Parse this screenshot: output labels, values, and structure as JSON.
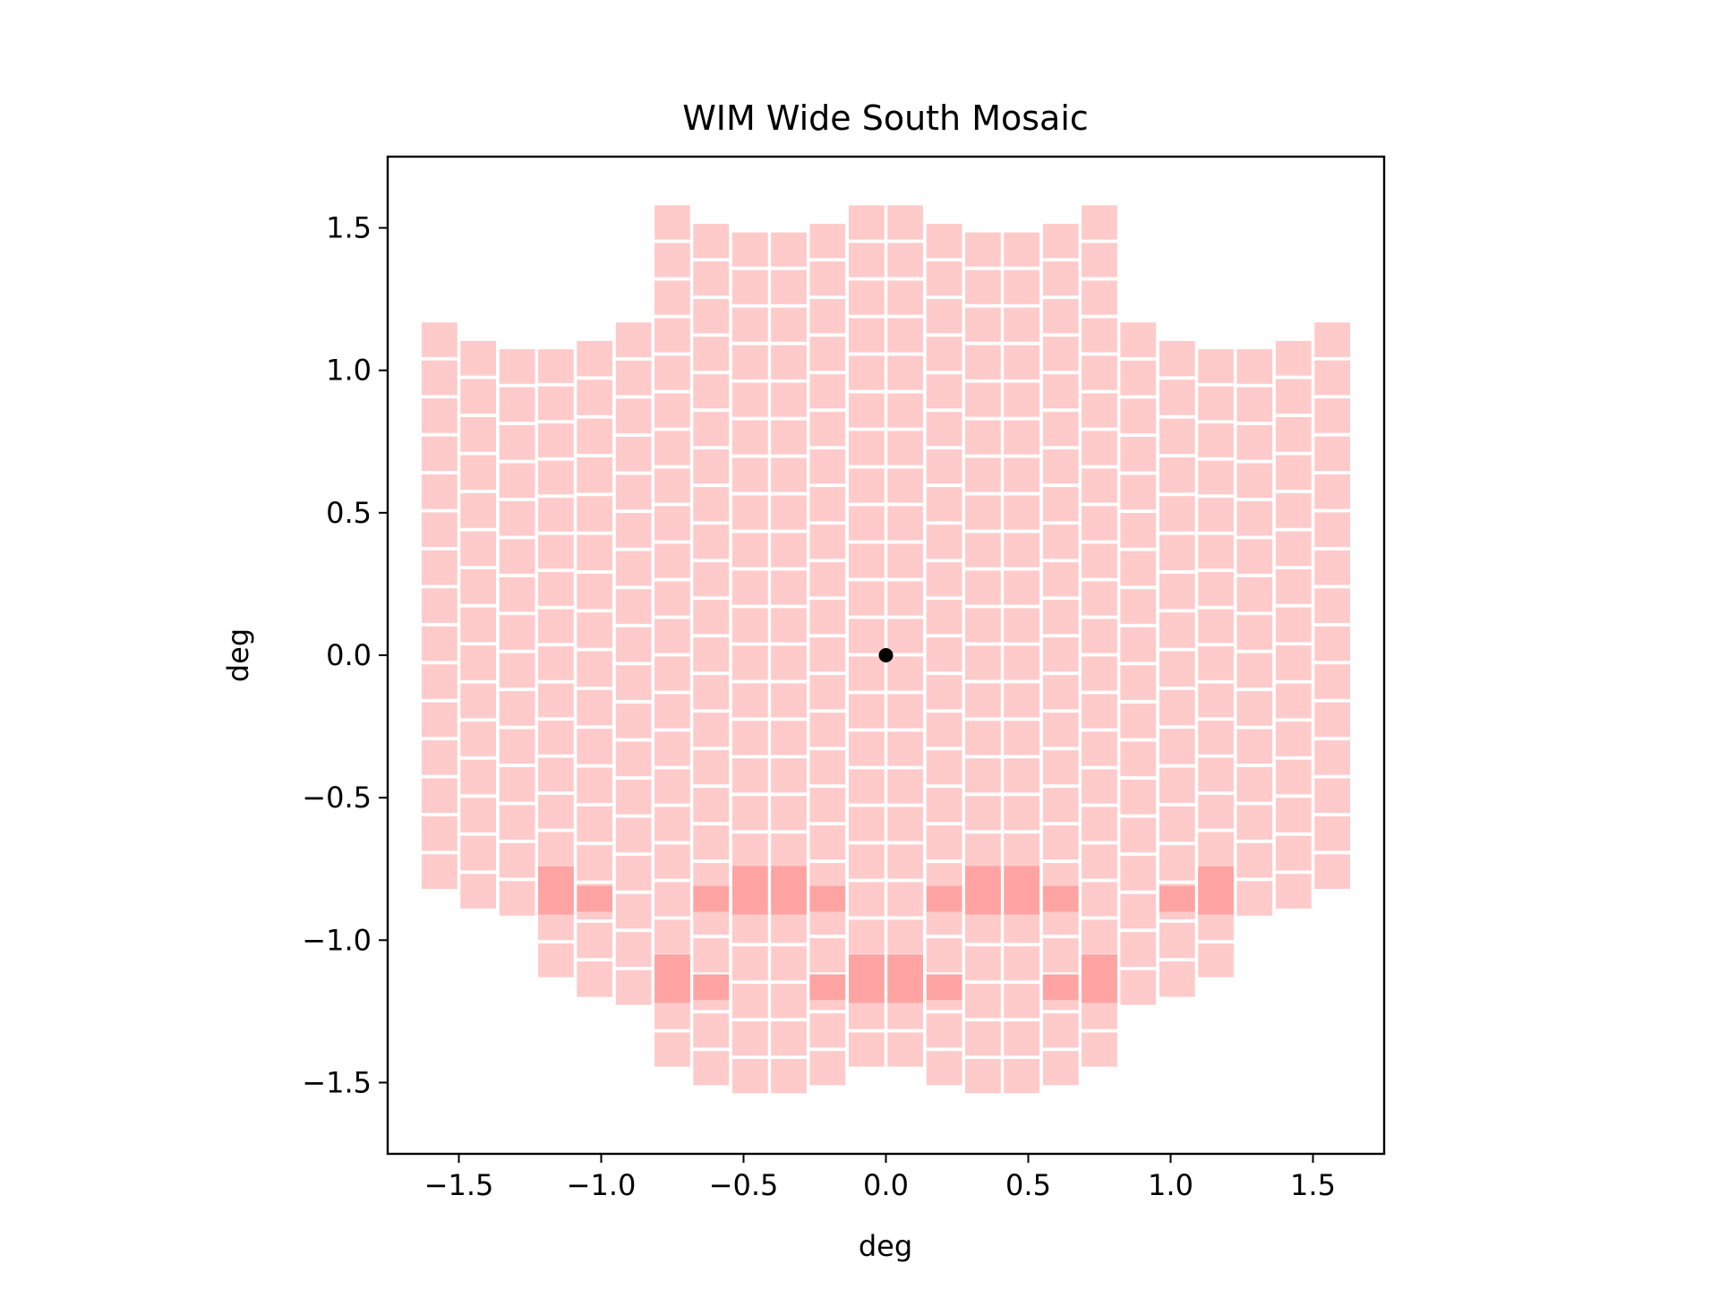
{
  "chart_data": {
    "type": "scatter",
    "title": "WIM Wide South Mosaic",
    "xlabel": "deg",
    "ylabel": "deg",
    "xlim": [
      -1.75,
      1.75
    ],
    "ylim": [
      -1.75,
      1.75
    ],
    "grid": false,
    "xticks": [
      -1.5,
      -1.0,
      -0.5,
      0.0,
      0.5,
      1.0,
      1.5
    ],
    "xtick_labels": [
      "−1.5",
      "−1.0",
      "−0.5",
      "0.0",
      "0.5",
      "1.0",
      "1.5"
    ],
    "yticks": [
      -1.5,
      -1.0,
      -0.5,
      0.0,
      0.5,
      1.0,
      1.5
    ],
    "ytick_labels": [
      "−1.5",
      "−1.0",
      "−0.5",
      "0.0",
      "0.5",
      "1.0",
      "1.5"
    ],
    "tile_color": "#ffcaca",
    "overlap_color": "#ffa3a3",
    "center_point": {
      "x": 0.0,
      "y": 0.0,
      "color": "#000000"
    },
    "tile_width_deg": 0.125,
    "tile_height_deg": 0.133,
    "columns": [
      {
        "x": -1.568,
        "y_top": 1.174,
        "y_bottom": -0.826
      },
      {
        "x": -1.432,
        "y_top": 1.109,
        "y_bottom": -0.895
      },
      {
        "x": -1.295,
        "y_top": 1.08,
        "y_bottom": -0.92
      },
      {
        "x": -1.159,
        "y_top": 1.08,
        "y_bottom": -1.136
      },
      {
        "x": -1.023,
        "y_top": 1.109,
        "y_bottom": -1.205
      },
      {
        "x": -0.886,
        "y_top": 1.174,
        "y_bottom": -1.233
      },
      {
        "x": -0.75,
        "y_top": 1.585,
        "y_bottom": -1.45
      },
      {
        "x": -0.614,
        "y_top": 1.52,
        "y_bottom": -1.515
      },
      {
        "x": -0.477,
        "y_top": 1.49,
        "y_bottom": -1.543
      },
      {
        "x": -0.341,
        "y_top": 1.49,
        "y_bottom": -1.543
      },
      {
        "x": -0.205,
        "y_top": 1.52,
        "y_bottom": -1.515
      },
      {
        "x": -0.068,
        "y_top": 1.585,
        "y_bottom": -1.45
      },
      {
        "x": 0.068,
        "y_top": 1.585,
        "y_bottom": -1.45
      },
      {
        "x": 0.205,
        "y_top": 1.52,
        "y_bottom": -1.515
      },
      {
        "x": 0.341,
        "y_top": 1.49,
        "y_bottom": -1.543
      },
      {
        "x": 0.477,
        "y_top": 1.49,
        "y_bottom": -1.543
      },
      {
        "x": 0.614,
        "y_top": 1.52,
        "y_bottom": -1.515
      },
      {
        "x": 0.75,
        "y_top": 1.585,
        "y_bottom": -1.45
      },
      {
        "x": 0.886,
        "y_top": 1.174,
        "y_bottom": -1.233
      },
      {
        "x": 1.023,
        "y_top": 1.109,
        "y_bottom": -1.205
      },
      {
        "x": 1.159,
        "y_top": 1.08,
        "y_bottom": -1.136
      },
      {
        "x": 1.295,
        "y_top": 1.08,
        "y_bottom": -0.92
      },
      {
        "x": 1.432,
        "y_top": 1.109,
        "y_bottom": -0.895
      },
      {
        "x": 1.568,
        "y_top": 1.174,
        "y_bottom": -0.826
      }
    ],
    "overlaps": [
      {
        "x": -1.159,
        "y_top": -0.74,
        "y_bottom": -0.91
      },
      {
        "x": -1.023,
        "y_top": -0.81,
        "y_bottom": -0.9
      },
      {
        "x": -0.614,
        "y_top": -0.81,
        "y_bottom": -0.9
      },
      {
        "x": -0.477,
        "y_top": -0.74,
        "y_bottom": -0.91
      },
      {
        "x": -0.341,
        "y_top": -0.74,
        "y_bottom": -0.91
      },
      {
        "x": -0.205,
        "y_top": -0.81,
        "y_bottom": -0.9
      },
      {
        "x": 0.205,
        "y_top": -0.81,
        "y_bottom": -0.9
      },
      {
        "x": 0.341,
        "y_top": -0.74,
        "y_bottom": -0.91
      },
      {
        "x": 0.477,
        "y_top": -0.74,
        "y_bottom": -0.91
      },
      {
        "x": 0.614,
        "y_top": -0.81,
        "y_bottom": -0.9
      },
      {
        "x": 1.023,
        "y_top": -0.81,
        "y_bottom": -0.9
      },
      {
        "x": 1.159,
        "y_top": -0.74,
        "y_bottom": -0.91
      },
      {
        "x": -0.75,
        "y_top": -1.05,
        "y_bottom": -1.22
      },
      {
        "x": -0.614,
        "y_top": -1.12,
        "y_bottom": -1.21
      },
      {
        "x": -0.205,
        "y_top": -1.12,
        "y_bottom": -1.21
      },
      {
        "x": -0.068,
        "y_top": -1.05,
        "y_bottom": -1.22
      },
      {
        "x": 0.068,
        "y_top": -1.05,
        "y_bottom": -1.22
      },
      {
        "x": 0.205,
        "y_top": -1.12,
        "y_bottom": -1.21
      },
      {
        "x": 0.614,
        "y_top": -1.12,
        "y_bottom": -1.21
      },
      {
        "x": 0.75,
        "y_top": -1.05,
        "y_bottom": -1.22
      }
    ]
  }
}
